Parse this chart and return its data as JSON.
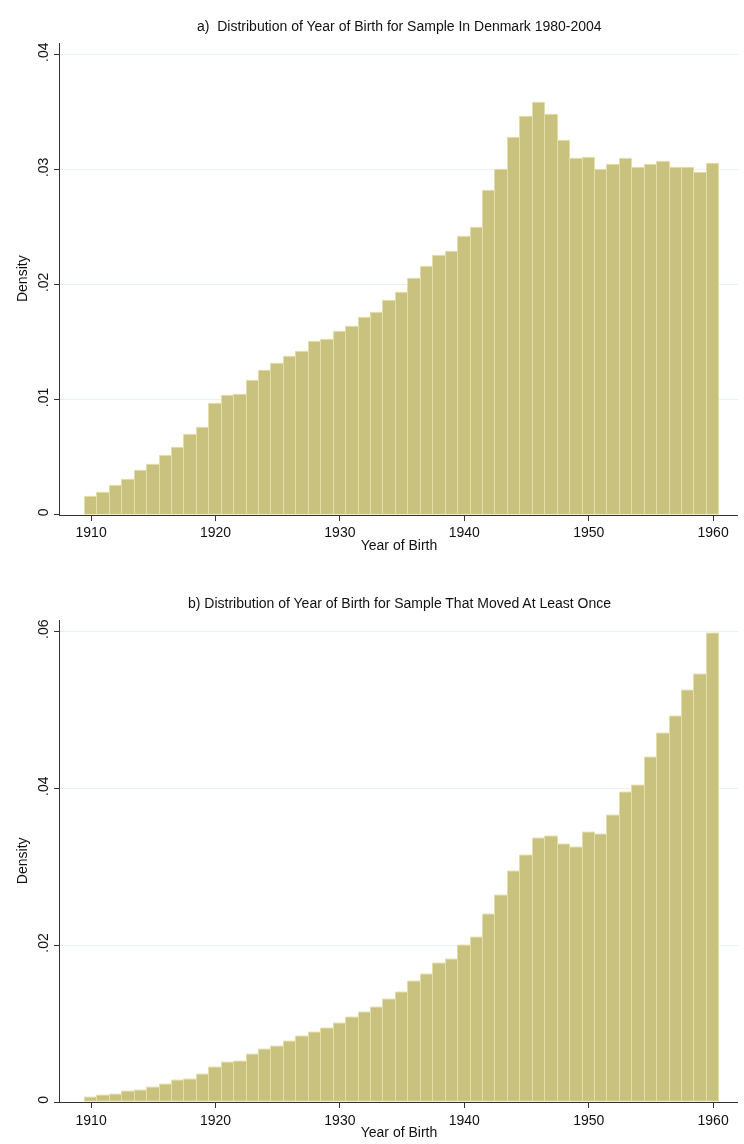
{
  "chart_data": [
    {
      "type": "histogram",
      "title": "a)  Distribution of Year of Birth for Sample In Denmark 1980-2004",
      "xlabel": "Year of Birth",
      "ylabel": "Density",
      "color": "#c9c27f",
      "bins": [
        1909.5,
        1910.5,
        1911.5,
        1912.5,
        1913.5,
        1914.5,
        1915.5,
        1916.5,
        1917.5,
        1918.5,
        1919.5,
        1920.5,
        1921.5,
        1922.5,
        1923.5,
        1924.5,
        1925.5,
        1926.5,
        1927.5,
        1928.5,
        1929.5,
        1930.5,
        1931.5,
        1932.5,
        1933.5,
        1934.5,
        1935.5,
        1936.5,
        1937.5,
        1938.5,
        1939.5,
        1940.5,
        1941.5,
        1942.5,
        1943.5,
        1944.5,
        1945.5,
        1946.5,
        1947.5,
        1948.5,
        1949.5,
        1950.5,
        1951.5,
        1952.5,
        1953.5,
        1954.5,
        1955.5,
        1956.5,
        1957.5,
        1958.5,
        1959.5,
        1960.5
      ],
      "values": [
        0.0015,
        0.0019,
        0.0025,
        0.003,
        0.0038,
        0.0043,
        0.0051,
        0.0058,
        0.0069,
        0.0075,
        0.0096,
        0.0103,
        0.0104,
        0.0116,
        0.0125,
        0.0131,
        0.0137,
        0.0141,
        0.015,
        0.0152,
        0.0159,
        0.0163,
        0.0171,
        0.0175,
        0.0186,
        0.0193,
        0.0205,
        0.0215,
        0.0225,
        0.0228,
        0.0241,
        0.0249,
        0.0281,
        0.03,
        0.0327,
        0.0346,
        0.0358,
        0.0347,
        0.0325,
        0.0309,
        0.031,
        0.03,
        0.0304,
        0.0309,
        0.0301,
        0.0304,
        0.0307,
        0.0301,
        0.0301,
        0.0297,
        0.0305
      ],
      "xlim": [
        1907.5,
        1962
      ],
      "xticks": [
        1910,
        1920,
        1930,
        1940,
        1950,
        1960
      ],
      "ylim": [
        0,
        0.041
      ],
      "yticks": [
        {
          "value": 0,
          "label": "0"
        },
        {
          "value": 0.01,
          "label": ".01"
        },
        {
          "value": 0.02,
          "label": ".02"
        },
        {
          "value": 0.03,
          "label": ".03"
        },
        {
          "value": 0.04,
          "label": ".04"
        }
      ],
      "grid": "y"
    },
    {
      "type": "histogram",
      "title": "b) Distribution of Year of Birth for Sample That Moved At Least Once",
      "xlabel": "Year of Birth",
      "ylabel": "Density",
      "color": "#c9c27f",
      "bins": [
        1909.5,
        1910.5,
        1911.5,
        1912.5,
        1913.5,
        1914.5,
        1915.5,
        1916.5,
        1917.5,
        1918.5,
        1919.5,
        1920.5,
        1921.5,
        1922.5,
        1923.5,
        1924.5,
        1925.5,
        1926.5,
        1927.5,
        1928.5,
        1929.5,
        1930.5,
        1931.5,
        1932.5,
        1933.5,
        1934.5,
        1935.5,
        1936.5,
        1937.5,
        1938.5,
        1939.5,
        1940.5,
        1941.5,
        1942.5,
        1943.5,
        1944.5,
        1945.5,
        1946.5,
        1947.5,
        1948.5,
        1949.5,
        1950.5,
        1951.5,
        1952.5,
        1953.5,
        1954.5,
        1955.5,
        1956.5,
        1957.5,
        1958.5,
        1959.5,
        1960.5
      ],
      "values": [
        0.0006,
        0.0008,
        0.0009,
        0.0013,
        0.0015,
        0.0018,
        0.0022,
        0.0027,
        0.0029,
        0.0035,
        0.0044,
        0.005,
        0.0052,
        0.0061,
        0.0067,
        0.0071,
        0.0077,
        0.0084,
        0.0089,
        0.0093,
        0.01,
        0.0107,
        0.0114,
        0.012,
        0.0131,
        0.014,
        0.0154,
        0.0163,
        0.0176,
        0.0181,
        0.0199,
        0.0209,
        0.0239,
        0.0263,
        0.0294,
        0.0314,
        0.0336,
        0.0338,
        0.0328,
        0.0324,
        0.0343,
        0.0341,
        0.0365,
        0.0395,
        0.0404,
        0.0439,
        0.047,
        0.0491,
        0.0524,
        0.0545,
        0.0597
      ],
      "xlim": [
        1907.5,
        1962
      ],
      "xticks": [
        1910,
        1920,
        1930,
        1940,
        1950,
        1960
      ],
      "ylim": [
        0,
        0.0615
      ],
      "yticks": [
        {
          "value": 0,
          "label": "0"
        },
        {
          "value": 0.02,
          "label": ".02"
        },
        {
          "value": 0.04,
          "label": ".04"
        },
        {
          "value": 0.06,
          "label": ".06"
        }
      ],
      "grid": "y"
    }
  ]
}
